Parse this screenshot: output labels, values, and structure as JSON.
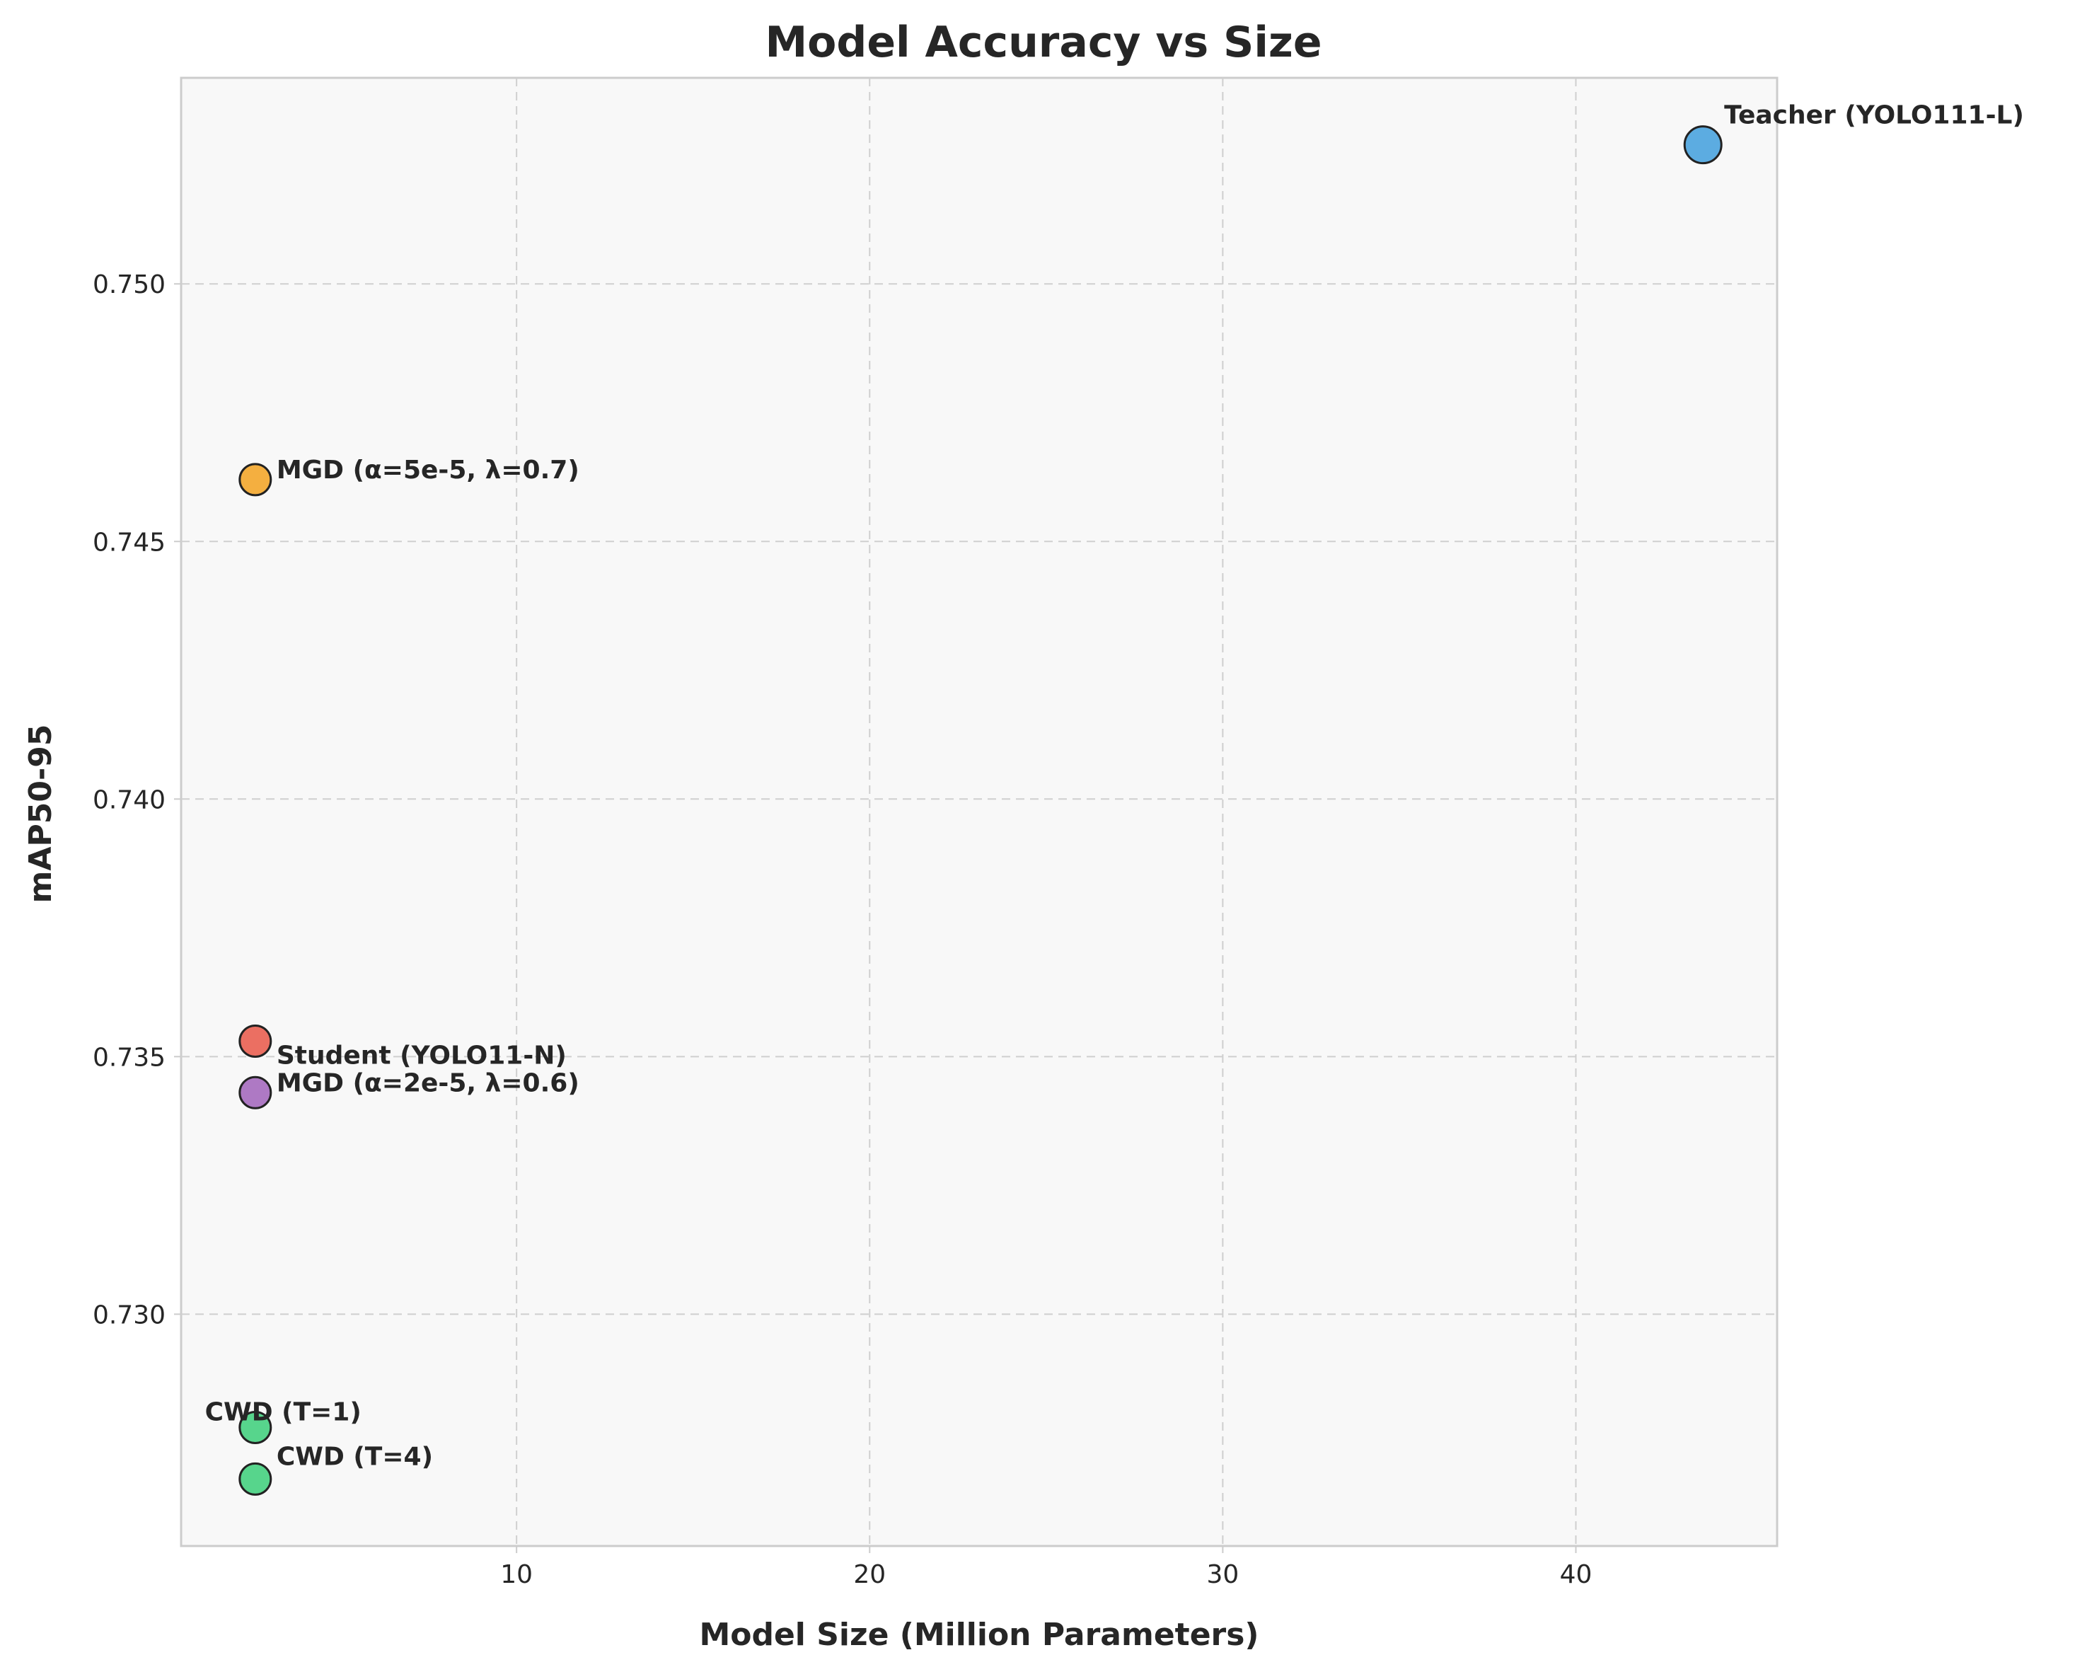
{
  "chart_data": {
    "type": "scatter",
    "title": "Model Accuracy vs Size",
    "xlabel": "Model Size (Million Parameters)",
    "ylabel": "mAP50-95",
    "xlim": [
      0.5,
      45.7
    ],
    "ylim": [
      0.7255,
      0.754
    ],
    "xticks": [
      10,
      20,
      30,
      40
    ],
    "yticks": [
      0.73,
      0.735,
      0.74,
      0.745,
      0.75
    ],
    "grid": true,
    "points": [
      {
        "label": "Teacher (YOLO111-L)",
        "x": 43.6,
        "y": 0.7527,
        "color": "#3498db"
      },
      {
        "label": "MGD (α=5e-5, λ=0.7)",
        "x": 2.6,
        "y": 0.7462,
        "color": "#f39c12"
      },
      {
        "label": "Student (YOLO11-N)",
        "x": 2.6,
        "y": 0.7353,
        "color": "#e74c3c"
      },
      {
        "label": "MGD (α=2e-5, λ=0.6)",
        "x": 2.6,
        "y": 0.7343,
        "color": "#9b59b6"
      },
      {
        "label": "CWD (T=1)",
        "x": 2.6,
        "y": 0.7278,
        "color": "#2ecc71"
      },
      {
        "label": "CWD (T=4)",
        "x": 2.6,
        "y": 0.7268,
        "color": "#2ecc71"
      }
    ]
  }
}
